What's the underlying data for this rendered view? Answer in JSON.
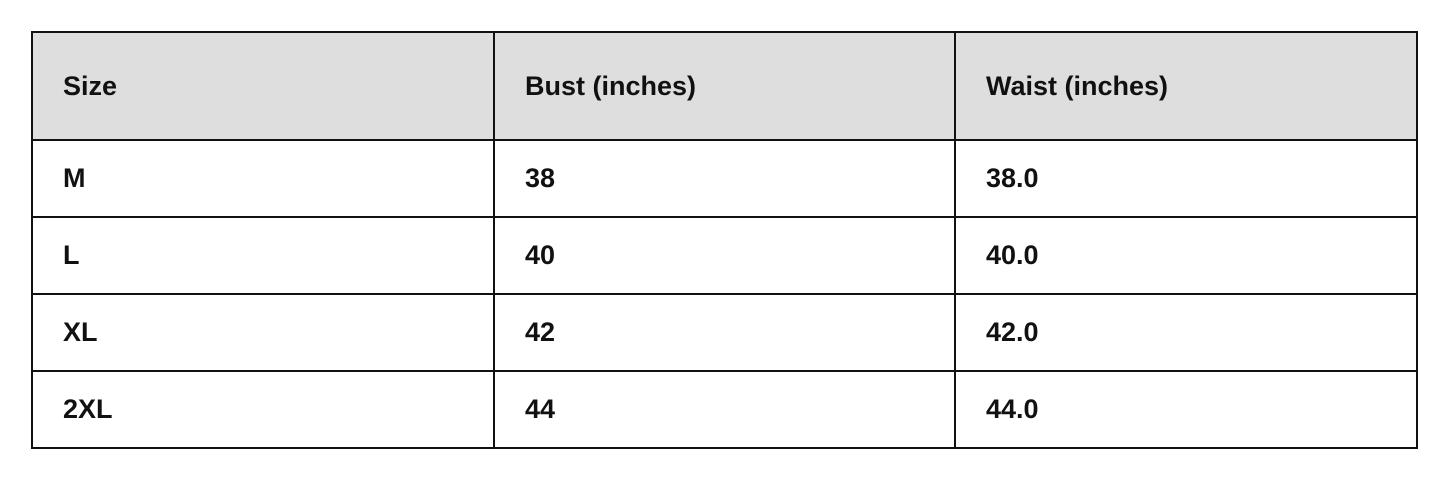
{
  "table": {
    "headers": [
      "Size",
      "Bust (inches)",
      "Waist (inches)"
    ],
    "rows": [
      [
        "M",
        "38",
        "38.0"
      ],
      [
        "L",
        "40",
        "40.0"
      ],
      [
        "XL",
        "42",
        "42.0"
      ],
      [
        "2XL",
        "44",
        "44.0"
      ]
    ]
  },
  "colors": {
    "header_bg": "#dedede",
    "border": "#111111"
  }
}
